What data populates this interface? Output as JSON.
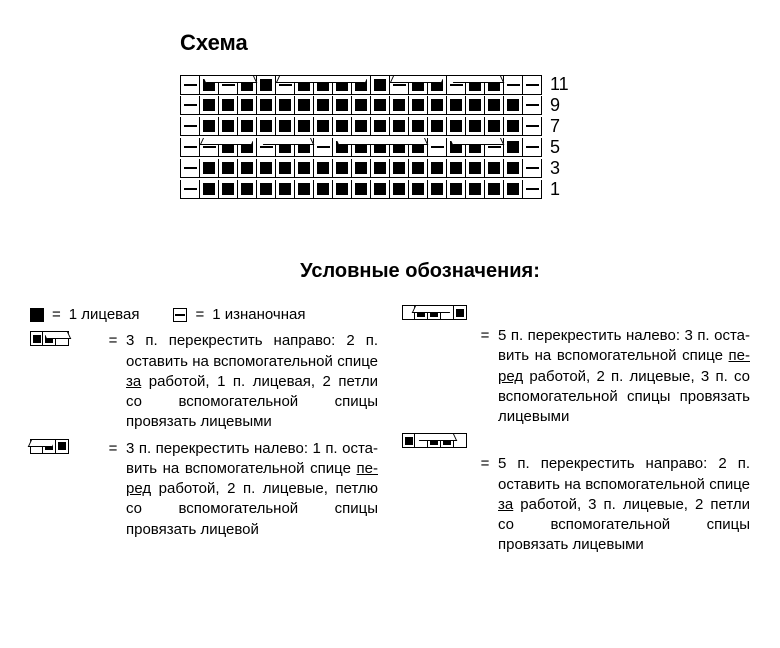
{
  "title": "Схема",
  "legend_title": "Условные обозначения:",
  "chart": {
    "cols": 19,
    "row_labels": [
      "11",
      "9",
      "7",
      "5",
      "3",
      "1"
    ],
    "rows": [
      [
        "p",
        "k",
        "p",
        "k",
        "k",
        "p",
        "k",
        "k",
        "k",
        "k",
        "k",
        "p",
        "k",
        "k",
        "p",
        "k",
        "k",
        "p",
        "p"
      ],
      [
        "p",
        "k",
        "k",
        "k",
        "k",
        "k",
        "k",
        "k",
        "k",
        "k",
        "k",
        "k",
        "k",
        "k",
        "k",
        "k",
        "k",
        "k",
        "p"
      ],
      [
        "p",
        "k",
        "k",
        "k",
        "k",
        "k",
        "k",
        "k",
        "k",
        "k",
        "k",
        "k",
        "k",
        "k",
        "k",
        "k",
        "k",
        "k",
        "p"
      ],
      [
        "p",
        "p",
        "k",
        "k",
        "p",
        "k",
        "k",
        "p",
        "k",
        "k",
        "k",
        "k",
        "k",
        "p",
        "k",
        "k",
        "p",
        "k",
        "p"
      ],
      [
        "p",
        "k",
        "k",
        "k",
        "k",
        "k",
        "k",
        "k",
        "k",
        "k",
        "k",
        "k",
        "k",
        "k",
        "k",
        "k",
        "k",
        "k",
        "p"
      ],
      [
        "p",
        "k",
        "k",
        "k",
        "k",
        "k",
        "k",
        "k",
        "k",
        "k",
        "k",
        "k",
        "k",
        "k",
        "k",
        "k",
        "k",
        "k",
        "p"
      ]
    ],
    "cables": [
      {
        "row": 0,
        "col": 1,
        "span": 3,
        "dir": "right"
      },
      {
        "row": 0,
        "col": 5,
        "span": 5,
        "dir": "left"
      },
      {
        "row": 0,
        "col": 11,
        "span": 3,
        "dir": "left"
      },
      {
        "row": 0,
        "col": 14,
        "span": 3,
        "dir": "right"
      },
      {
        "row": 3,
        "col": 1,
        "span": 3,
        "dir": "left"
      },
      {
        "row": 3,
        "col": 4,
        "span": 3,
        "dir": "right"
      },
      {
        "row": 3,
        "col": 8,
        "span": 5,
        "dir": "right"
      },
      {
        "row": 3,
        "col": 14,
        "span": 3,
        "dir": "right"
      }
    ]
  },
  "legend": {
    "knit": "1 лицевая",
    "purl": "1 изнаночная",
    "eq": "=",
    "c3r": "3 п. перекрестить направо: 2 п. оста­вить на вспомогательной спице <u>за</u> работой, 1 п. лицевая, 2 петли со вспомогательной спицы провязать лицевыми",
    "c3l": "3 п. перекрестить налево: 1 п. оста­вить на вспомогательной спице <u>пе­ред</u> работой, 2 п. лицевые, петлю со вспомогательной спицы провязать лицевой",
    "c5l": "5 п. перекрестить налево: 3 п. оста­вить на вспомогательной спице <u>пе­ред</u> работой, 2 п. лицевые,  3 п.  со вспомогательной спицы провязать лицевыми",
    "c5r": "5 п. перекрестить направо: 2 п. оста­вить на вспомогательной спице <u>за</u> работой,  3 п. лицевые,  2 петли со вспомогательной спицы провязать лицевыми"
  },
  "colors": {
    "ink": "#000000",
    "paper": "#ffffff"
  }
}
